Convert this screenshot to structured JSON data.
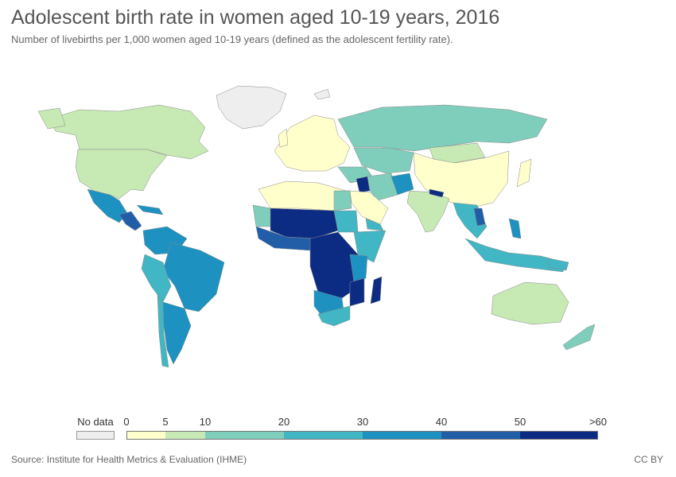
{
  "title": "Adolescent birth rate in women aged 10-19 years, 2016",
  "subtitle": "Number of livebirths per 1,000 women aged 10-19 years (defined as the adolescent fertility rate).",
  "source": "Source: Institute for Health Metrics & Evaluation (IHME)",
  "license": "CC BY",
  "legend": {
    "no_data_label": "No data",
    "no_data_color": "#eeeeee",
    "ticks": [
      "0",
      "5",
      "10",
      "20",
      "30",
      "40",
      "50",
      ">60"
    ],
    "bins": [
      {
        "from": 0,
        "to": 5,
        "color": "#ffffcc"
      },
      {
        "from": 5,
        "to": 10,
        "color": "#c7e9b4"
      },
      {
        "from": 10,
        "to": 20,
        "color": "#7fcdbb"
      },
      {
        "from": 20,
        "to": 30,
        "color": "#41b6c4"
      },
      {
        "from": 30,
        "to": 40,
        "color": "#1d91c0"
      },
      {
        "from": 40,
        "to": 50,
        "color": "#225ea8"
      },
      {
        "from": 50,
        "to": 60,
        "color": "#0c2c84"
      }
    ]
  },
  "regions": [
    {
      "name": "Greenland",
      "bin": "nodata"
    },
    {
      "name": "Canada",
      "bin": "5-10"
    },
    {
      "name": "United States",
      "bin": "5-10"
    },
    {
      "name": "Mexico",
      "bin": "30-40"
    },
    {
      "name": "Central America",
      "bin": "40-50"
    },
    {
      "name": "Colombia",
      "bin": "30-40"
    },
    {
      "name": "Venezuela",
      "bin": "30-40"
    },
    {
      "name": "Brazil",
      "bin": "30-40"
    },
    {
      "name": "Peru",
      "bin": "20-30"
    },
    {
      "name": "Bolivia",
      "bin": "30-40"
    },
    {
      "name": "Argentina",
      "bin": "30-40"
    },
    {
      "name": "Chile",
      "bin": "20-30"
    },
    {
      "name": "Europe",
      "bin": "0-5"
    },
    {
      "name": "Russia",
      "bin": "10-20"
    },
    {
      "name": "Kazakhstan",
      "bin": "10-20"
    },
    {
      "name": "Mongolia",
      "bin": "5-10"
    },
    {
      "name": "China",
      "bin": "0-5"
    },
    {
      "name": "Japan",
      "bin": "0-5"
    },
    {
      "name": "North Africa",
      "bin": "0-5"
    },
    {
      "name": "Sahel",
      "bin": "50-60"
    },
    {
      "name": "West Africa",
      "bin": "40-50"
    },
    {
      "name": "Central Africa",
      "bin": "50-60"
    },
    {
      "name": "East Africa",
      "bin": "30-40"
    },
    {
      "name": "Southern Africa",
      "bin": "20-30"
    },
    {
      "name": "Madagascar",
      "bin": "50-60"
    },
    {
      "name": "Arabian Peninsula",
      "bin": "0-5"
    },
    {
      "name": "Iran",
      "bin": "10-20"
    },
    {
      "name": "Afghanistan",
      "bin": "30-40"
    },
    {
      "name": "India",
      "bin": "5-10"
    },
    {
      "name": "Nepal",
      "bin": "50-60"
    },
    {
      "name": "Southeast Asia",
      "bin": "20-30"
    },
    {
      "name": "Indonesia",
      "bin": "20-30"
    },
    {
      "name": "Australia",
      "bin": "5-10"
    },
    {
      "name": "New Zealand",
      "bin": "10-20"
    }
  ]
}
